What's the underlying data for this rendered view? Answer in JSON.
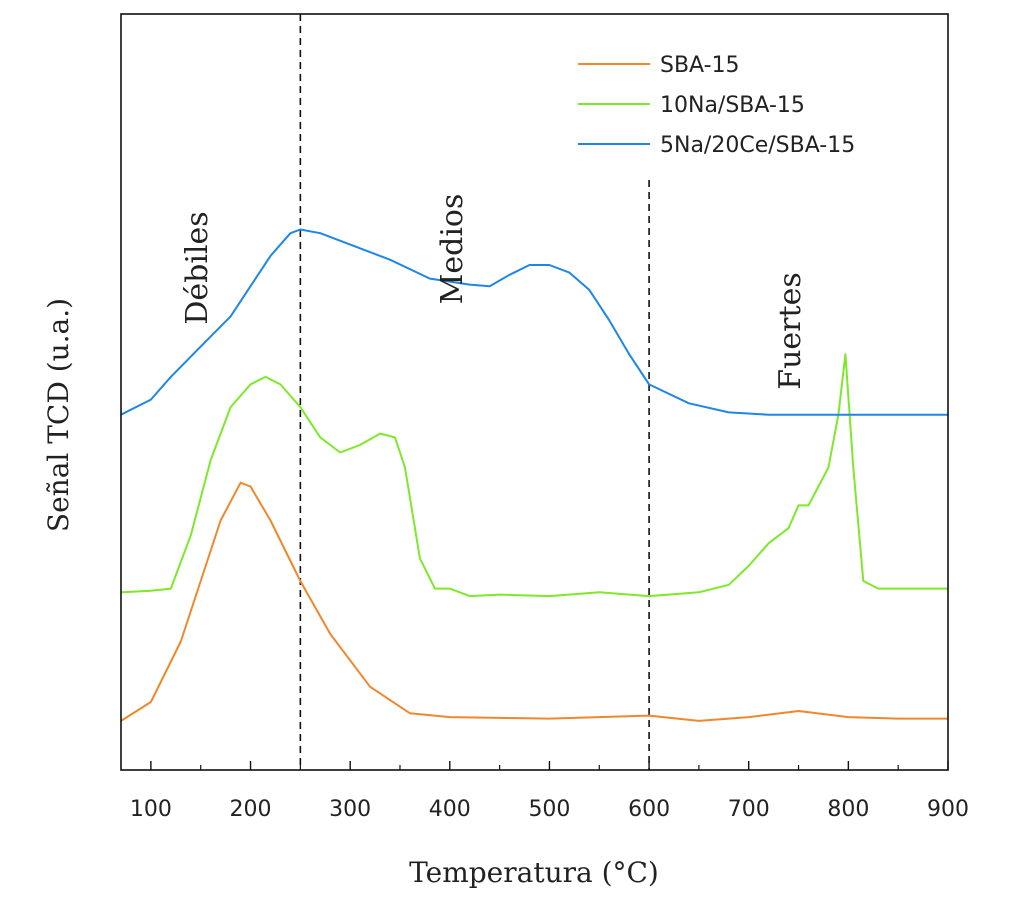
{
  "chart_data": {
    "type": "line",
    "xlabel": "Temperatura (°C)",
    "ylabel": "Señal TCD (u.a.)",
    "xlim": [
      70,
      900
    ],
    "ylim": [
      0,
      100
    ],
    "xticks": [
      100,
      200,
      300,
      400,
      500,
      600,
      700,
      800,
      900
    ],
    "yticks_visible": false,
    "grid": false,
    "legend_position": "top-right",
    "vlines": [
      250,
      600
    ],
    "region_labels": [
      "Débiles",
      "Medios",
      "Fuertes"
    ],
    "series": [
      {
        "name": "SBA-15",
        "color": "#f0872c",
        "x": [
          70,
          100,
          130,
          150,
          170,
          190,
          200,
          220,
          250,
          280,
          320,
          360,
          400,
          500,
          600,
          650,
          700,
          750,
          800,
          850,
          900
        ],
        "y": [
          6.5,
          9,
          17,
          25,
          33,
          38,
          37.5,
          33,
          25,
          18,
          11,
          7.5,
          7,
          6.8,
          7.2,
          6.5,
          7,
          7.8,
          7,
          6.8,
          6.8
        ]
      },
      {
        "name": "10Na/SBA-15",
        "color": "#7ee82a",
        "x": [
          70,
          100,
          120,
          140,
          160,
          180,
          200,
          215,
          230,
          250,
          270,
          290,
          310,
          330,
          345,
          355,
          370,
          385,
          400,
          420,
          450,
          500,
          550,
          600,
          650,
          680,
          700,
          720,
          740,
          750,
          760,
          780,
          790,
          797,
          805,
          815,
          830,
          870,
          900
        ],
        "y": [
          23.5,
          23.7,
          24,
          31,
          41,
          48,
          51,
          52,
          51,
          48,
          44,
          42,
          43,
          44.5,
          44,
          40,
          28,
          24,
          24,
          23,
          23.2,
          23,
          23.5,
          23,
          23.5,
          24.5,
          27,
          30,
          32,
          35,
          35,
          40,
          47,
          55,
          40,
          25,
          24,
          24,
          24
        ]
      },
      {
        "name": "5Na/20Ce/SBA-15",
        "color": "#1f86e8",
        "x": [
          70,
          100,
          120,
          150,
          180,
          200,
          220,
          240,
          250,
          270,
          300,
          340,
          380,
          420,
          440,
          460,
          480,
          500,
          520,
          540,
          560,
          580,
          600,
          640,
          680,
          720,
          800,
          900
        ],
        "y": [
          47,
          49,
          52,
          56,
          60,
          64,
          68,
          71,
          71.5,
          71,
          69.5,
          67.5,
          65,
          64.2,
          64,
          65.5,
          66.8,
          66.8,
          65.8,
          63.5,
          59.5,
          55,
          51,
          48.5,
          47.3,
          47,
          47,
          47
        ]
      }
    ]
  }
}
